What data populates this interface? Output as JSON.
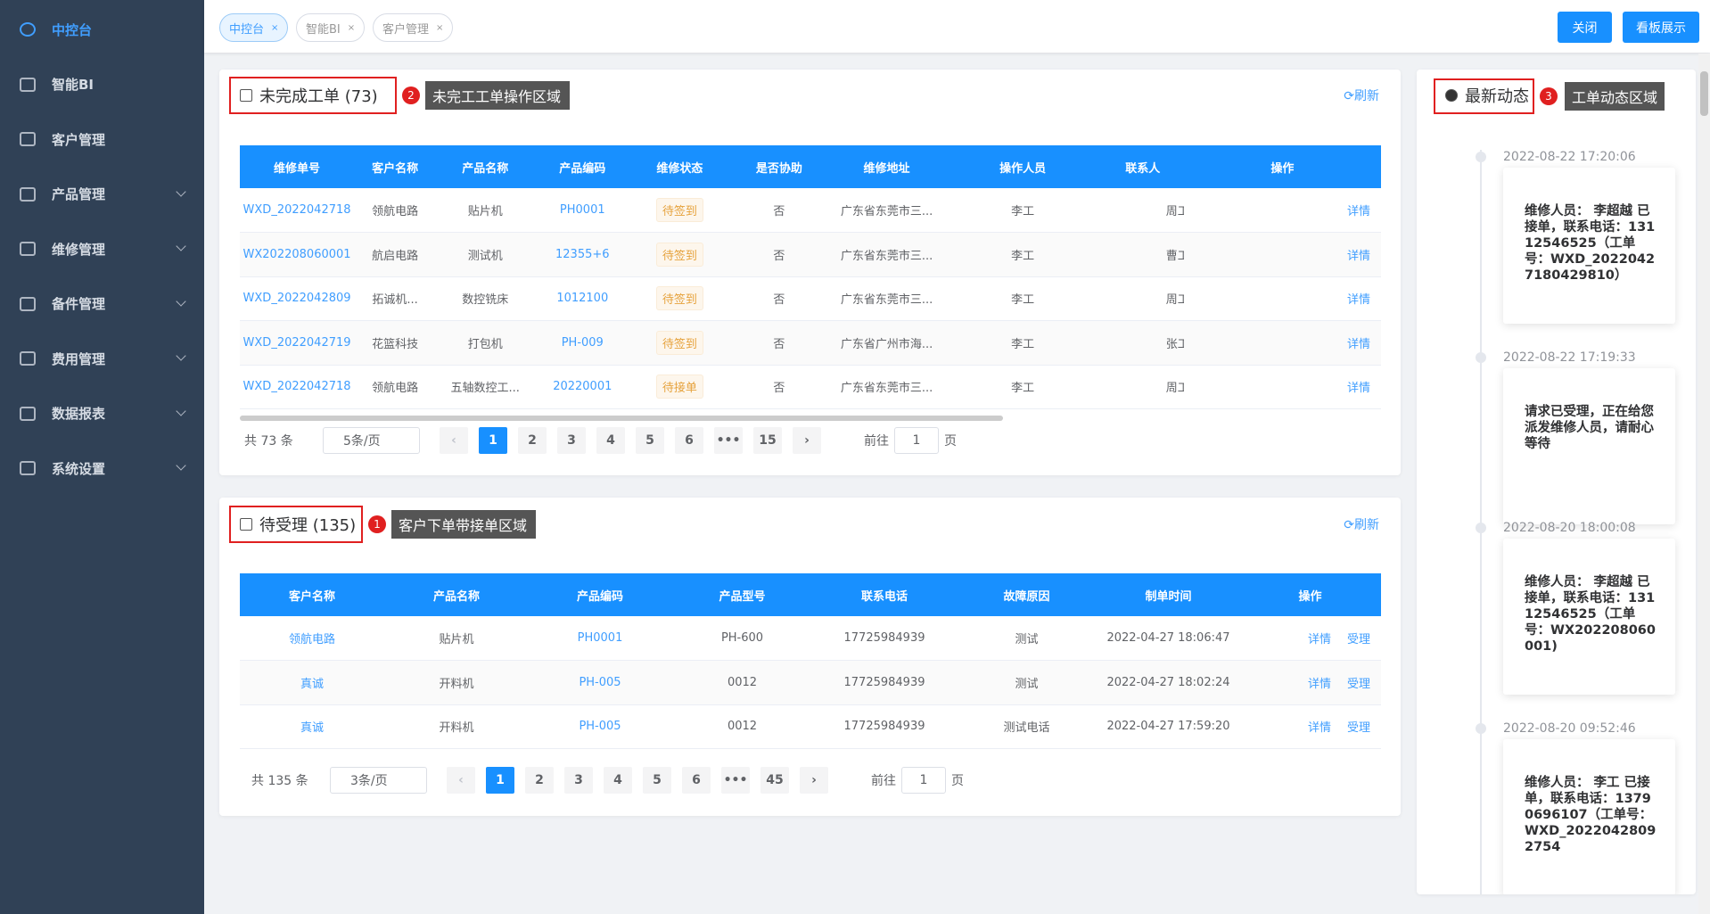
{
  "sidebar": {
    "items": [
      {
        "label": "中控台",
        "active": true,
        "submenu": false
      },
      {
        "label": "智能BI",
        "active": false,
        "submenu": false
      },
      {
        "label": "客户管理",
        "active": false,
        "submenu": false
      },
      {
        "label": "产品管理",
        "active": false,
        "submenu": true
      },
      {
        "label": "维修管理",
        "active": false,
        "submenu": true
      },
      {
        "label": "备件管理",
        "active": false,
        "submenu": true
      },
      {
        "label": "费用管理",
        "active": false,
        "submenu": true
      },
      {
        "label": "数据报表",
        "active": false,
        "submenu": true
      },
      {
        "label": "系统设置",
        "active": false,
        "submenu": true
      }
    ]
  },
  "tabs": [
    "中控台",
    "智能BI",
    "客户管理"
  ],
  "header_buttons": [
    "关闭",
    "看板展示"
  ],
  "work_orders": {
    "title": "未完成工单 (73)",
    "annotation": {
      "number": "2",
      "text": "未完工工单操作区域"
    },
    "refresh": "刷新",
    "columns": [
      "维修单号",
      "客户名称",
      "产品名称",
      "产品编码",
      "维修状态",
      "是否协助",
      "维修地址",
      "操作人员",
      "联系人",
      "操作"
    ],
    "rows": [
      [
        "WXD_2022042718",
        "领航电路",
        "贴片机",
        "PH0001",
        "待签到",
        "否",
        "广东省东莞市三...",
        "李工",
        "周工",
        "详情"
      ],
      [
        "WX202208060001",
        "航启电路",
        "测试机",
        "12355+6",
        "待签到",
        "否",
        "广东省东莞市三...",
        "李工",
        "曹工",
        "详情"
      ],
      [
        "WXD_2022042809",
        "拓诚机...",
        "数控铣床",
        "1012100",
        "待签到",
        "否",
        "广东省东莞市三...",
        "李工",
        "周工",
        "详情"
      ],
      [
        "WXD_2022042719",
        "花篮科技",
        "打包机",
        "PH-009",
        "待签到",
        "否",
        "广东省广州市海...",
        "李工",
        "张工",
        "详情"
      ],
      [
        "WXD_2022042718",
        "领航电路",
        "五轴数控工...",
        "20220001",
        "待接单",
        "否",
        "广东省东莞市三...",
        "李工",
        "周工",
        "详情"
      ]
    ],
    "pagination": {
      "total": "共 73 条",
      "page_size": "5条/页",
      "pages": [
        "1",
        "2",
        "3",
        "4",
        "5",
        "6",
        "•••",
        "15"
      ],
      "goto": "前往",
      "goto_value": "1",
      "page_unit": "页"
    }
  },
  "pending": {
    "title": "待受理 (135)",
    "annotation": {
      "number": "1",
      "text": "客户下单带接单区域"
    },
    "refresh": "刷新",
    "columns": [
      "客户名称",
      "产品名称",
      "产品编码",
      "产品型号",
      "联系电话",
      "故障原因",
      "制单时间",
      "操作"
    ],
    "rows": [
      [
        "领航电路",
        "贴片机",
        "PH0001",
        "PH-600",
        "17725984939",
        "测试",
        "2022-04-27 18:06:47",
        [
          "详情",
          "受理"
        ]
      ],
      [
        "真诚",
        "开料机",
        "PH-005",
        "0012",
        "17725984939",
        "测试",
        "2022-04-27 18:02:24",
        [
          "详情",
          "受理"
        ]
      ],
      [
        "真诚",
        "开料机",
        "PH-005",
        "0012",
        "17725984939",
        "测试电话",
        "2022-04-27 17:59:20",
        [
          "详情",
          "受理"
        ]
      ]
    ],
    "pagination": {
      "total": "共 135 条",
      "page_size": "3条/页",
      "pages": [
        "1",
        "2",
        "3",
        "4",
        "5",
        "6",
        "•••",
        "45"
      ],
      "goto": "前往",
      "goto_value": "1",
      "page_unit": "页"
    }
  },
  "activity": {
    "title": "最新动态",
    "annotation": {
      "number": "3",
      "text": "工单动态区域"
    },
    "items": [
      {
        "time": "2022-08-22 17:20:06",
        "text": "维修人员： 李超越 已接单，联系电话：13112546525（工单号：WXD_20220427180429810）"
      },
      {
        "time": "2022-08-22 17:19:33",
        "text": "请求已受理，正在给您派发维修人员，请耐心等待"
      },
      {
        "time": "2022-08-20 18:00:08",
        "text": "维修人员： 李超越 已接单，联系电话：13112546525（工单号：WX202208060001)"
      },
      {
        "time": "2022-08-20 09:52:46",
        "text": "维修人员： 李工 已接单，联系电话：13790696107（工单号：WXD_20220428092754"
      }
    ]
  }
}
